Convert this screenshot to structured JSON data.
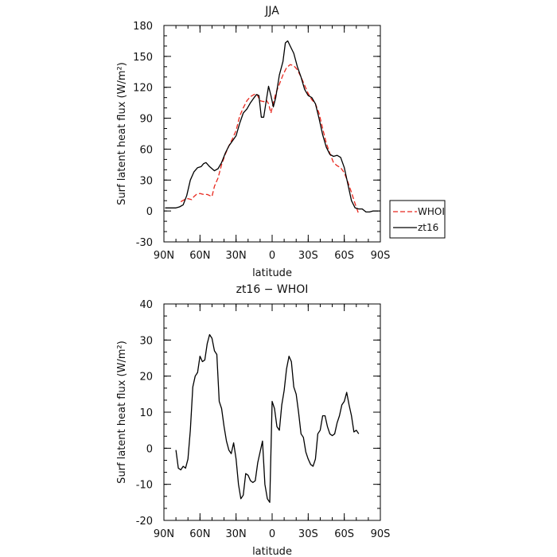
{
  "chart_data": [
    {
      "type": "line",
      "title": "JJA",
      "xlabel": "latitude",
      "ylabel": "Surf latent heat flux (W/m²)",
      "xlim": [
        90,
        -90
      ],
      "ylim": [
        -30,
        180
      ],
      "yticks": [
        -30,
        0,
        30,
        60,
        90,
        120,
        150,
        180
      ],
      "xticks": [
        {
          "v": 90,
          "label": "90N"
        },
        {
          "v": 60,
          "label": "60N"
        },
        {
          "v": 30,
          "label": "30N"
        },
        {
          "v": 0,
          "label": "0"
        },
        {
          "v": -30,
          "label": "30S"
        },
        {
          "v": -60,
          "label": "60S"
        },
        {
          "v": -90,
          "label": "90S"
        }
      ],
      "legend": {
        "position": "right",
        "entries": [
          "WHOI",
          "zt16"
        ]
      },
      "series": [
        {
          "name": "WHOI",
          "color": "#e8281e",
          "dash": true,
          "points": [
            [
              76,
              9
            ],
            [
              73,
              11
            ],
            [
              70,
              12
            ],
            [
              67,
              11
            ],
            [
              65,
              14
            ],
            [
              63,
              16
            ],
            [
              60,
              17
            ],
            [
              57,
              16
            ],
            [
              54,
              16
            ],
            [
              50,
              14
            ],
            [
              48,
              24
            ],
            [
              45,
              32
            ],
            [
              42,
              45
            ],
            [
              39,
              55
            ],
            [
              36,
              63
            ],
            [
              33,
              70
            ],
            [
              30,
              78
            ],
            [
              27,
              92
            ],
            [
              24,
              100
            ],
            [
              21,
              107
            ],
            [
              18,
              111
            ],
            [
              15,
              113
            ],
            [
              13,
              114
            ],
            [
              10,
              107
            ],
            [
              7,
              106
            ],
            [
              5,
              108
            ],
            [
              3,
              104
            ],
            [
              1,
              95
            ],
            [
              -1,
              105
            ],
            [
              -3,
              114
            ],
            [
              -6,
              123
            ],
            [
              -9,
              132
            ],
            [
              -12,
              139
            ],
            [
              -15,
              142
            ],
            [
              -18,
              141
            ],
            [
              -21,
              137
            ],
            [
              -24,
              130
            ],
            [
              -27,
              122
            ],
            [
              -30,
              114
            ],
            [
              -33,
              108
            ],
            [
              -36,
              104
            ],
            [
              -39,
              95
            ],
            [
              -42,
              80
            ],
            [
              -45,
              66
            ],
            [
              -48,
              56
            ],
            [
              -51,
              47
            ],
            [
              -54,
              44
            ],
            [
              -57,
              42
            ],
            [
              -60,
              37
            ],
            [
              -63,
              28
            ],
            [
              -66,
              18
            ],
            [
              -69,
              7
            ],
            [
              -72,
              -3
            ]
          ]
        },
        {
          "name": "zt16",
          "color": "#000000",
          "dash": false,
          "points": [
            [
              89,
              3
            ],
            [
              85,
              3
            ],
            [
              80,
              3
            ],
            [
              77,
              4
            ],
            [
              74,
              6
            ],
            [
              71,
              15
            ],
            [
              68,
              30
            ],
            [
              65,
              38
            ],
            [
              62,
              42
            ],
            [
              59,
              43
            ],
            [
              57,
              46
            ],
            [
              55,
              47
            ],
            [
              52,
              43
            ],
            [
              48,
              39
            ],
            [
              45,
              41
            ],
            [
              42,
              47
            ],
            [
              39,
              56
            ],
            [
              36,
              63
            ],
            [
              33,
              68
            ],
            [
              30,
              73
            ],
            [
              27,
              85
            ],
            [
              24,
              95
            ],
            [
              21,
              99
            ],
            [
              18,
              105
            ],
            [
              15,
              110
            ],
            [
              13,
              113
            ],
            [
              11,
              112
            ],
            [
              9,
              91
            ],
            [
              7,
              91
            ],
            [
              5,
              106
            ],
            [
              3,
              121
            ],
            [
              1,
              112
            ],
            [
              -1,
              101
            ],
            [
              -3,
              110
            ],
            [
              -6,
              132
            ],
            [
              -9,
              145
            ],
            [
              -11,
              163
            ],
            [
              -13,
              165
            ],
            [
              -15,
              160
            ],
            [
              -18,
              153
            ],
            [
              -21,
              140
            ],
            [
              -24,
              130
            ],
            [
              -27,
              118
            ],
            [
              -30,
              112
            ],
            [
              -33,
              110
            ],
            [
              -36,
              104
            ],
            [
              -39,
              90
            ],
            [
              -42,
              74
            ],
            [
              -45,
              62
            ],
            [
              -48,
              55
            ],
            [
              -51,
              53
            ],
            [
              -54,
              54
            ],
            [
              -57,
              52
            ],
            [
              -60,
              42
            ],
            [
              -63,
              26
            ],
            [
              -66,
              10
            ],
            [
              -69,
              3
            ],
            [
              -72,
              2
            ],
            [
              -75,
              2
            ],
            [
              -78,
              -1
            ],
            [
              -81,
              -1
            ],
            [
              -84,
              0
            ],
            [
              -88,
              0
            ]
          ]
        }
      ]
    },
    {
      "type": "line",
      "title": "zt16 − WHOI",
      "xlabel": "latitude",
      "ylabel": "Surf latent heat flux (W/m²)",
      "xlim": [
        90,
        -90
      ],
      "ylim": [
        -20,
        40
      ],
      "yticks": [
        -20,
        -10,
        0,
        10,
        20,
        30,
        40
      ],
      "xticks": [
        {
          "v": 90,
          "label": "90N"
        },
        {
          "v": 60,
          "label": "60N"
        },
        {
          "v": 30,
          "label": "30N"
        },
        {
          "v": 0,
          "label": "0"
        },
        {
          "v": -30,
          "label": "30S"
        },
        {
          "v": -60,
          "label": "60S"
        },
        {
          "v": -90,
          "label": "90S"
        }
      ],
      "series": [
        {
          "color": "#000000",
          "dash": false,
          "points": [
            [
              80,
              -0.5
            ],
            [
              78,
              -5.5
            ],
            [
              76,
              -6
            ],
            [
              74,
              -5
            ],
            [
              72,
              -5.5
            ],
            [
              70,
              -3
            ],
            [
              68,
              5
            ],
            [
              66,
              17
            ],
            [
              64,
              20
            ],
            [
              62,
              21
            ],
            [
              60,
              25.5
            ],
            [
              58,
              24
            ],
            [
              56,
              24.5
            ],
            [
              54,
              29
            ],
            [
              52,
              31.5
            ],
            [
              50,
              30.5
            ],
            [
              48,
              27
            ],
            [
              46,
              26
            ],
            [
              44,
              13
            ],
            [
              42,
              11
            ],
            [
              40,
              6
            ],
            [
              38,
              2
            ],
            [
              36,
              -0.5
            ],
            [
              34,
              -1.5
            ],
            [
              32,
              1.5
            ],
            [
              30,
              -3
            ],
            [
              28,
              -10
            ],
            [
              26,
              -14
            ],
            [
              24,
              -13
            ],
            [
              22,
              -7
            ],
            [
              20,
              -7.5
            ],
            [
              18,
              -9
            ],
            [
              16,
              -9.5
            ],
            [
              14,
              -9
            ],
            [
              12,
              -4
            ],
            [
              10,
              -1
            ],
            [
              8,
              2
            ],
            [
              6,
              -10
            ],
            [
              4,
              -14
            ],
            [
              2,
              -15
            ],
            [
              0,
              13
            ],
            [
              -2,
              11
            ],
            [
              -4,
              6
            ],
            [
              -6,
              5
            ],
            [
              -8,
              12
            ],
            [
              -10,
              16
            ],
            [
              -12,
              22
            ],
            [
              -14,
              25.5
            ],
            [
              -16,
              24
            ],
            [
              -18,
              17
            ],
            [
              -20,
              15
            ],
            [
              -22,
              10
            ],
            [
              -24,
              4
            ],
            [
              -26,
              3
            ],
            [
              -28,
              -1
            ],
            [
              -30,
              -3
            ],
            [
              -32,
              -4.5
            ],
            [
              -34,
              -5
            ],
            [
              -36,
              -3
            ],
            [
              -38,
              4
            ],
            [
              -40,
              5
            ],
            [
              -42,
              9
            ],
            [
              -44,
              9
            ],
            [
              -46,
              6
            ],
            [
              -48,
              4
            ],
            [
              -50,
              3.5
            ],
            [
              -52,
              4
            ],
            [
              -54,
              7
            ],
            [
              -56,
              9
            ],
            [
              -58,
              12
            ],
            [
              -60,
              13
            ],
            [
              -62,
              15.5
            ],
            [
              -64,
              12
            ],
            [
              -66,
              9
            ],
            [
              -68,
              4.5
            ],
            [
              -70,
              5
            ],
            [
              -72,
              4
            ]
          ]
        }
      ]
    }
  ]
}
